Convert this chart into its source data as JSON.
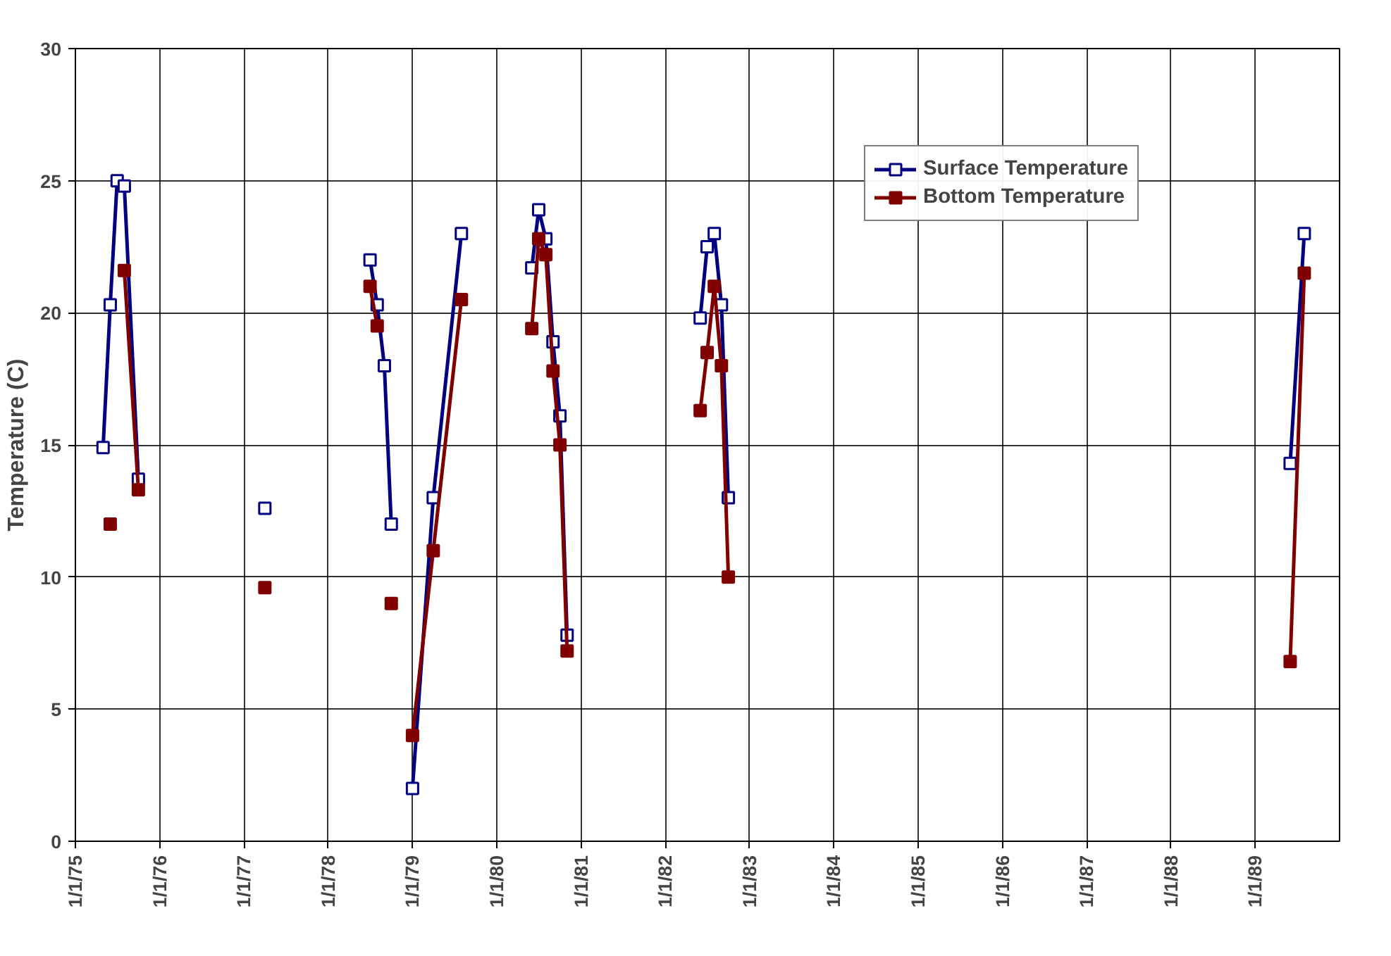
{
  "chart_data": {
    "type": "line",
    "ylabel": "Temperature (C)",
    "x": [
      "1975-05-01",
      "1975-06-01",
      "1975-07-01",
      "1975-08-01",
      "1975-10-01",
      "1976-07-01",
      "1977-04-01",
      "1977-12-01",
      "1978-07-01",
      "1978-08-01",
      "1978-09-01",
      "1978-10-01",
      "1978-11-15",
      "1979-01-01",
      "1979-04-01",
      "1979-08-01",
      "1979-12-01",
      "1980-06-01",
      "1980-07-01",
      "1980-08-01",
      "1980-09-01",
      "1980-10-01",
      "1980-11-01",
      "1981-08-01",
      "1982-06-01",
      "1982-07-01",
      "1982-08-01",
      "1982-09-01",
      "1982-10-01",
      "1986-01-01",
      "1989-06-01",
      "1989-08-01"
    ],
    "series": [
      {
        "name": "Surface Temperature",
        "color": "#000080",
        "values": [
          14.9,
          20.3,
          25.0,
          24.8,
          13.7,
          null,
          12.6,
          null,
          22.0,
          20.3,
          18.0,
          12.0,
          null,
          2.0,
          13.0,
          23.0,
          null,
          21.7,
          23.9,
          22.8,
          18.9,
          16.1,
          7.8,
          null,
          19.8,
          22.5,
          23.0,
          20.3,
          13.0,
          null,
          14.3,
          23.0
        ]
      },
      {
        "name": "Bottom Temperature",
        "color": "#800000",
        "values": [
          null,
          12.0,
          null,
          21.6,
          13.3,
          null,
          9.6,
          null,
          21.0,
          19.5,
          null,
          9.0,
          null,
          4.0,
          11.0,
          20.5,
          null,
          19.4,
          22.8,
          22.2,
          17.8,
          15.0,
          7.2,
          null,
          16.3,
          18.5,
          21.0,
          18.0,
          10.0,
          null,
          6.8,
          21.5
        ]
      }
    ],
    "xlim": [
      "1975-01-01",
      "1990-01-01"
    ],
    "xticks": [
      {
        "value": "1975-01-01",
        "label": "1/1/75"
      },
      {
        "value": "1976-01-01",
        "label": "1/1/76"
      },
      {
        "value": "1977-01-01",
        "label": "1/1/77"
      },
      {
        "value": "1978-01-01",
        "label": "1/1/78"
      },
      {
        "value": "1979-01-01",
        "label": "1/1/79"
      },
      {
        "value": "1980-01-01",
        "label": "1/1/80"
      },
      {
        "value": "1981-01-01",
        "label": "1/1/81"
      },
      {
        "value": "1982-01-01",
        "label": "1/1/82"
      },
      {
        "value": "1983-01-01",
        "label": "1/1/83"
      },
      {
        "value": "1984-01-01",
        "label": "1/1/84"
      },
      {
        "value": "1985-01-01",
        "label": "1/1/85"
      },
      {
        "value": "1986-01-01",
        "label": "1/1/86"
      },
      {
        "value": "1987-01-01",
        "label": "1/1/87"
      },
      {
        "value": "1988-01-01",
        "label": "1/1/88"
      },
      {
        "value": "1989-01-01",
        "label": "1/1/89"
      }
    ],
    "ylim": [
      0,
      30
    ],
    "yticks": [
      0,
      5,
      10,
      15,
      20,
      25,
      30
    ],
    "grid": true,
    "legend": "top right",
    "marker": "square",
    "line_style": "solid"
  }
}
